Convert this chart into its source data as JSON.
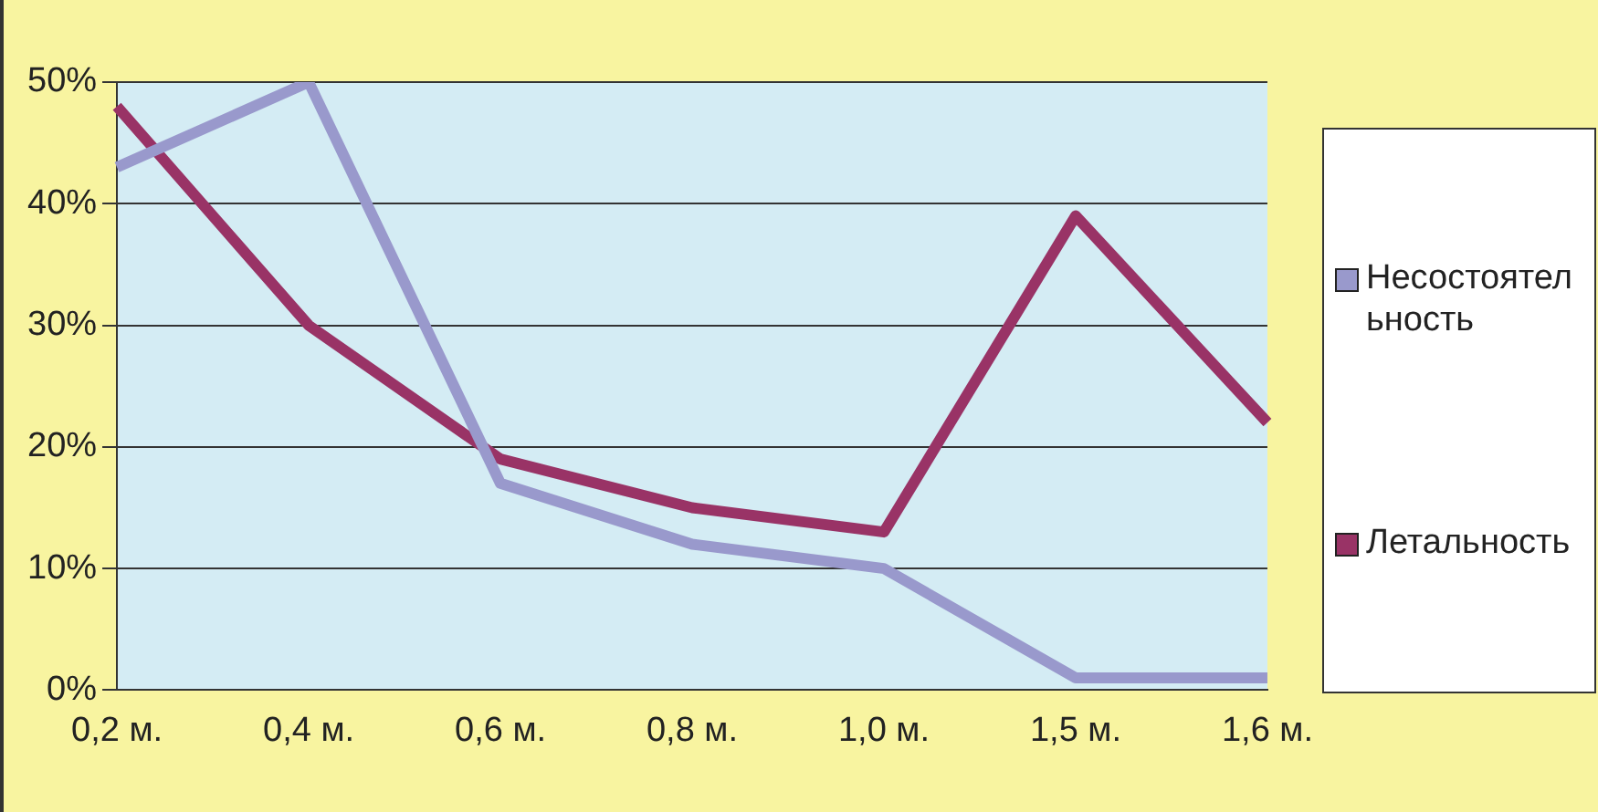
{
  "chart_data": {
    "type": "line",
    "categories": [
      "0,2 м.",
      "0,4 м.",
      "0,6 м.",
      "0,8 м.",
      "1,0 м.",
      "1,5 м.",
      "1,6 м."
    ],
    "series": [
      {
        "name": "Несостоятельность",
        "color": "#9999cc",
        "values": [
          43,
          50,
          17,
          12,
          10,
          1,
          1
        ]
      },
      {
        "name": "Летальность",
        "color": "#993366",
        "values": [
          48,
          30,
          19,
          15,
          13,
          39,
          22
        ]
      }
    ],
    "ylim": [
      0,
      50
    ],
    "yticks": [
      {
        "value": 0,
        "label": "0%"
      },
      {
        "value": 10,
        "label": "10%"
      },
      {
        "value": 20,
        "label": "20%"
      },
      {
        "value": 30,
        "label": "30%"
      },
      {
        "value": 40,
        "label": "40%"
      },
      {
        "value": 50,
        "label": "50%"
      }
    ],
    "grid": "y",
    "legend": "right",
    "marker": "none",
    "line_style": "solid"
  }
}
